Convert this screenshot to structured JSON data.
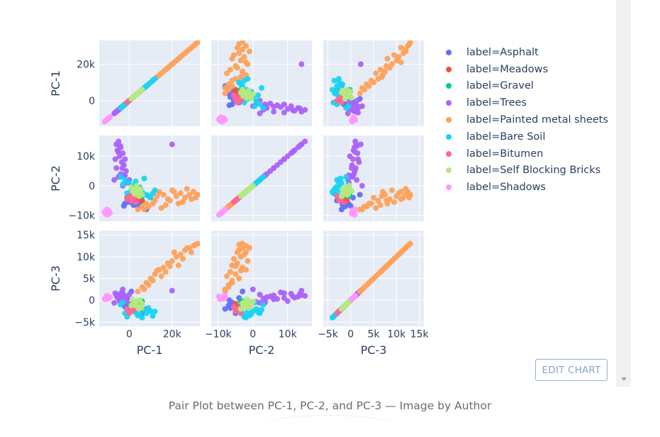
{
  "caption": "Pair Plot between PC-1, PC-2, and PC-3 — Image by Author",
  "edit_button_label": "EDIT CHART",
  "chart_data": {
    "type": "scatter",
    "variables": [
      "PC-1",
      "PC-2",
      "PC-3"
    ],
    "axis_ranges": {
      "PC-1": [
        -14000,
        33000
      ],
      "PC-2": [
        -12000,
        17000
      ],
      "PC-3": [
        -6000,
        16000
      ]
    },
    "ticks": {
      "PC-1": [
        0,
        20000
      ],
      "PC-2": [
        -10000,
        0,
        10000
      ],
      "PC-3": [
        -5000,
        0,
        5000,
        10000,
        15000
      ]
    },
    "tick_labels": {
      "PC-1": [
        "0",
        "20k"
      ],
      "PC-2": [
        "−10k",
        "0",
        "10k"
      ],
      "PC-3": [
        "−5k",
        "0",
        "5k",
        "10k",
        "15k"
      ]
    },
    "grid": true,
    "legend_position": "right",
    "series": [
      {
        "name": "label=Asphalt",
        "color": "#636efa",
        "points": [
          [
            -2000,
            -6000,
            -1500
          ],
          [
            0,
            -5500,
            -1000
          ],
          [
            2000,
            -6500,
            -1800
          ],
          [
            4000,
            -7000,
            -1200
          ],
          [
            -1000,
            -4000,
            500
          ],
          [
            3000,
            -5000,
            -2500
          ],
          [
            -3000,
            3500,
            -500
          ],
          [
            8000,
            -8000,
            -2000
          ],
          [
            1000,
            -3000,
            2000
          ],
          [
            6000,
            -5000,
            -3000
          ],
          [
            -2500,
            -6800,
            0
          ],
          [
            5000,
            -6000,
            -500
          ]
        ]
      },
      {
        "name": "label=Meadows",
        "color": "#ef553b",
        "points": [
          [
            1000,
            -3000,
            -1000
          ],
          [
            3000,
            -4000,
            -1500
          ],
          [
            5000,
            -4500,
            -2000
          ],
          [
            6000,
            -5000,
            -800
          ],
          [
            2000,
            -3500,
            -2500
          ],
          [
            4000,
            -2500,
            -1200
          ]
        ]
      },
      {
        "name": "label=Gravel",
        "color": "#00cc96",
        "points": [
          [
            2000,
            -2000,
            -500
          ],
          [
            4000,
            -3000,
            -300
          ],
          [
            5000,
            -2500,
            -800
          ],
          [
            3000,
            -1500,
            -1000
          ],
          [
            6000,
            -3500,
            -200
          ]
        ]
      },
      {
        "name": "label=Trees",
        "color": "#ab63fa",
        "points": [
          [
            -5000,
            15000,
            1000
          ],
          [
            -4000,
            13000,
            800
          ],
          [
            -3000,
            11000,
            1500
          ],
          [
            -2000,
            9000,
            500
          ],
          [
            -6000,
            14000,
            1200
          ],
          [
            -5500,
            12000,
            600
          ],
          [
            -4500,
            10000,
            -200
          ],
          [
            -3500,
            8000,
            1800
          ],
          [
            -2500,
            7000,
            300
          ],
          [
            -1500,
            5000,
            900
          ],
          [
            -6000,
            6000,
            1100
          ],
          [
            -4000,
            4000,
            700
          ],
          [
            -7000,
            2000,
            -600
          ],
          [
            -5000,
            3000,
            400
          ],
          [
            0,
            2000,
            1300
          ],
          [
            -1000,
            1000,
            -400
          ],
          [
            -3000,
            0,
            2500
          ],
          [
            -6500,
            9000,
            1600
          ],
          [
            -5200,
            11500,
            900
          ],
          [
            -4200,
            13500,
            1400
          ],
          [
            -3200,
            6000,
            200
          ],
          [
            20000,
            14000,
            2200
          ],
          [
            -2000,
            3500,
            -300
          ]
        ]
      },
      {
        "name": "label=Painted metal sheets",
        "color": "#ffa15a",
        "points": [
          [
            30000,
            -2000,
            12500
          ],
          [
            28000,
            -3000,
            12000
          ],
          [
            26000,
            -4000,
            11500
          ],
          [
            24000,
            -2500,
            10500
          ],
          [
            22000,
            -3500,
            10000
          ],
          [
            20000,
            -1500,
            9000
          ],
          [
            18000,
            -4500,
            8500
          ],
          [
            16000,
            -3000,
            7500
          ],
          [
            14000,
            -2000,
            7000
          ],
          [
            12000,
            -5000,
            6000
          ],
          [
            10000,
            -4000,
            5000
          ],
          [
            8000,
            -6000,
            4000
          ],
          [
            6000,
            -7000,
            3000
          ],
          [
            4000,
            -8000,
            2000
          ],
          [
            32000,
            -3000,
            13000
          ],
          [
            29000,
            -4500,
            11000
          ],
          [
            25000,
            -5500,
            9500
          ],
          [
            27000,
            -1000,
            12000
          ],
          [
            23000,
            -6000,
            8000
          ],
          [
            19000,
            -5000,
            7800
          ],
          [
            21000,
            -2000,
            11000
          ],
          [
            17000,
            -6500,
            6500
          ],
          [
            15000,
            -7500,
            5500
          ],
          [
            11000,
            -6000,
            4500
          ],
          [
            9000,
            -7000,
            3500
          ],
          [
            31000,
            -4000,
            12800
          ],
          [
            7000,
            -8000,
            2500
          ],
          [
            13000,
            -3500,
            6800
          ]
        ]
      },
      {
        "name": "label=Bare Soil",
        "color": "#19d3f3",
        "points": [
          [
            -2000,
            2000,
            -3000
          ],
          [
            0,
            1000,
            -2000
          ],
          [
            2000,
            0,
            -2500
          ],
          [
            4000,
            -1000,
            -3500
          ],
          [
            6000,
            -2000,
            -4000
          ],
          [
            8000,
            -3000,
            -3000
          ],
          [
            10000,
            -4000,
            -2500
          ],
          [
            -4000,
            3000,
            -1000
          ],
          [
            1000,
            -1500,
            -1500
          ],
          [
            3000,
            1500,
            -2800
          ],
          [
            5000,
            -500,
            -3200
          ],
          [
            7000,
            2500,
            -2200
          ],
          [
            -1000,
            -2500,
            -3800
          ],
          [
            9000,
            -3500,
            -1800
          ],
          [
            12000,
            -1500,
            -2600
          ],
          [
            -3000,
            500,
            -500
          ],
          [
            11000,
            -2500,
            -3600
          ]
        ]
      },
      {
        "name": "label=Bitumen",
        "color": "#ff6692",
        "points": [
          [
            -1000,
            -4500,
            -2000
          ],
          [
            1000,
            -5000,
            -2500
          ],
          [
            3000,
            -5500,
            -1500
          ],
          [
            0,
            -3500,
            -3000
          ],
          [
            2000,
            -4000,
            -2200
          ]
        ]
      },
      {
        "name": "label=Self Blocking Bricks",
        "color": "#b6e880",
        "points": [
          [
            2000,
            -2000,
            -1000
          ],
          [
            3000,
            -1000,
            -500
          ],
          [
            4000,
            -2500,
            -1500
          ],
          [
            5000,
            -1500,
            0
          ],
          [
            6000,
            -3000,
            -800
          ],
          [
            1000,
            -500,
            -1200
          ],
          [
            3500,
            0,
            -300
          ],
          [
            4500,
            -3500,
            -2000
          ],
          [
            2500,
            -2800,
            -600
          ],
          [
            5500,
            -1200,
            -1800
          ],
          [
            1500,
            -1800,
            200
          ],
          [
            3200,
            -2200,
            -1300
          ]
        ]
      },
      {
        "name": "label=Shadows",
        "color": "#ff97ff",
        "points": [
          [
            -10000,
            -9000,
            500
          ],
          [
            -9500,
            -8500,
            800
          ],
          [
            -11000,
            -9500,
            200
          ],
          [
            -10500,
            -8000,
            1000
          ],
          [
            -9000,
            -9200,
            600
          ],
          [
            -11500,
            -8800,
            300
          ],
          [
            -10200,
            -9800,
            900
          ],
          [
            -9800,
            -8200,
            400
          ]
        ]
      }
    ]
  }
}
